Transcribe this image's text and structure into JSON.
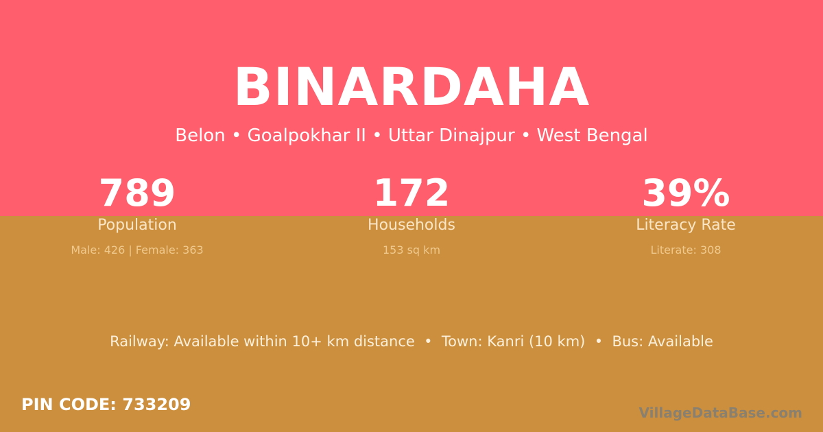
{
  "village": {
    "name": "BINARDAHA",
    "hierarchy": "Belon • Goalpokhar II • Uttar Dinajpur • West Bengal"
  },
  "stats": [
    {
      "value": "789",
      "label": "Population",
      "detail": "Male: 426 | Female: 363"
    },
    {
      "value": "172",
      "label": "Households",
      "detail": "153 sq km"
    },
    {
      "value": "39%",
      "label": "Literacy Rate",
      "detail": "Literate: 308"
    }
  ],
  "connectivity": "Railway: Available within 10+ km distance  •  Town: Kanri (10 km)  •  Bus: Available",
  "pin_code": "PIN CODE: 733209",
  "brand": "VillageDataBase.com",
  "colors": {
    "top": "#ff5f6d",
    "bottom": "#cb8f3d"
  }
}
